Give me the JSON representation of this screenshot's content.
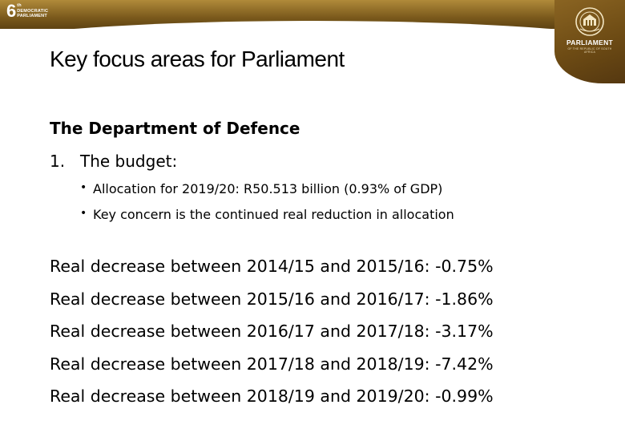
{
  "header": {
    "left_logo": {
      "number": "6",
      "superscript": "th",
      "line1": "DEMOCRATIC",
      "line2": "PARLIAMENT"
    },
    "right_logo": {
      "word": "PARLIAMENT",
      "subtitle": "OF THE REPUBLIC OF SOUTH AFRICA"
    }
  },
  "slide": {
    "title": "Key focus areas for Parliament",
    "subtitle": "The Department of Defence",
    "numbered_item": {
      "number": "1.",
      "text": "The budget:"
    },
    "bullets": [
      "Allocation for 2019/20: R50.513 billion (0.93% of GDP)",
      "Key concern is the continued real reduction in allocation"
    ],
    "decreases": [
      "Real decrease between 2014/15 and 2015/16: -0.75%",
      "Real decrease between 2015/16 and 2016/17: -1.86%",
      "Real decrease between 2016/17 and 2017/18: -3.17%",
      "Real decrease between 2017/18 and 2018/19: -7.42%",
      "Real decrease between 2018/19 and 2019/20: -0.99%"
    ]
  }
}
